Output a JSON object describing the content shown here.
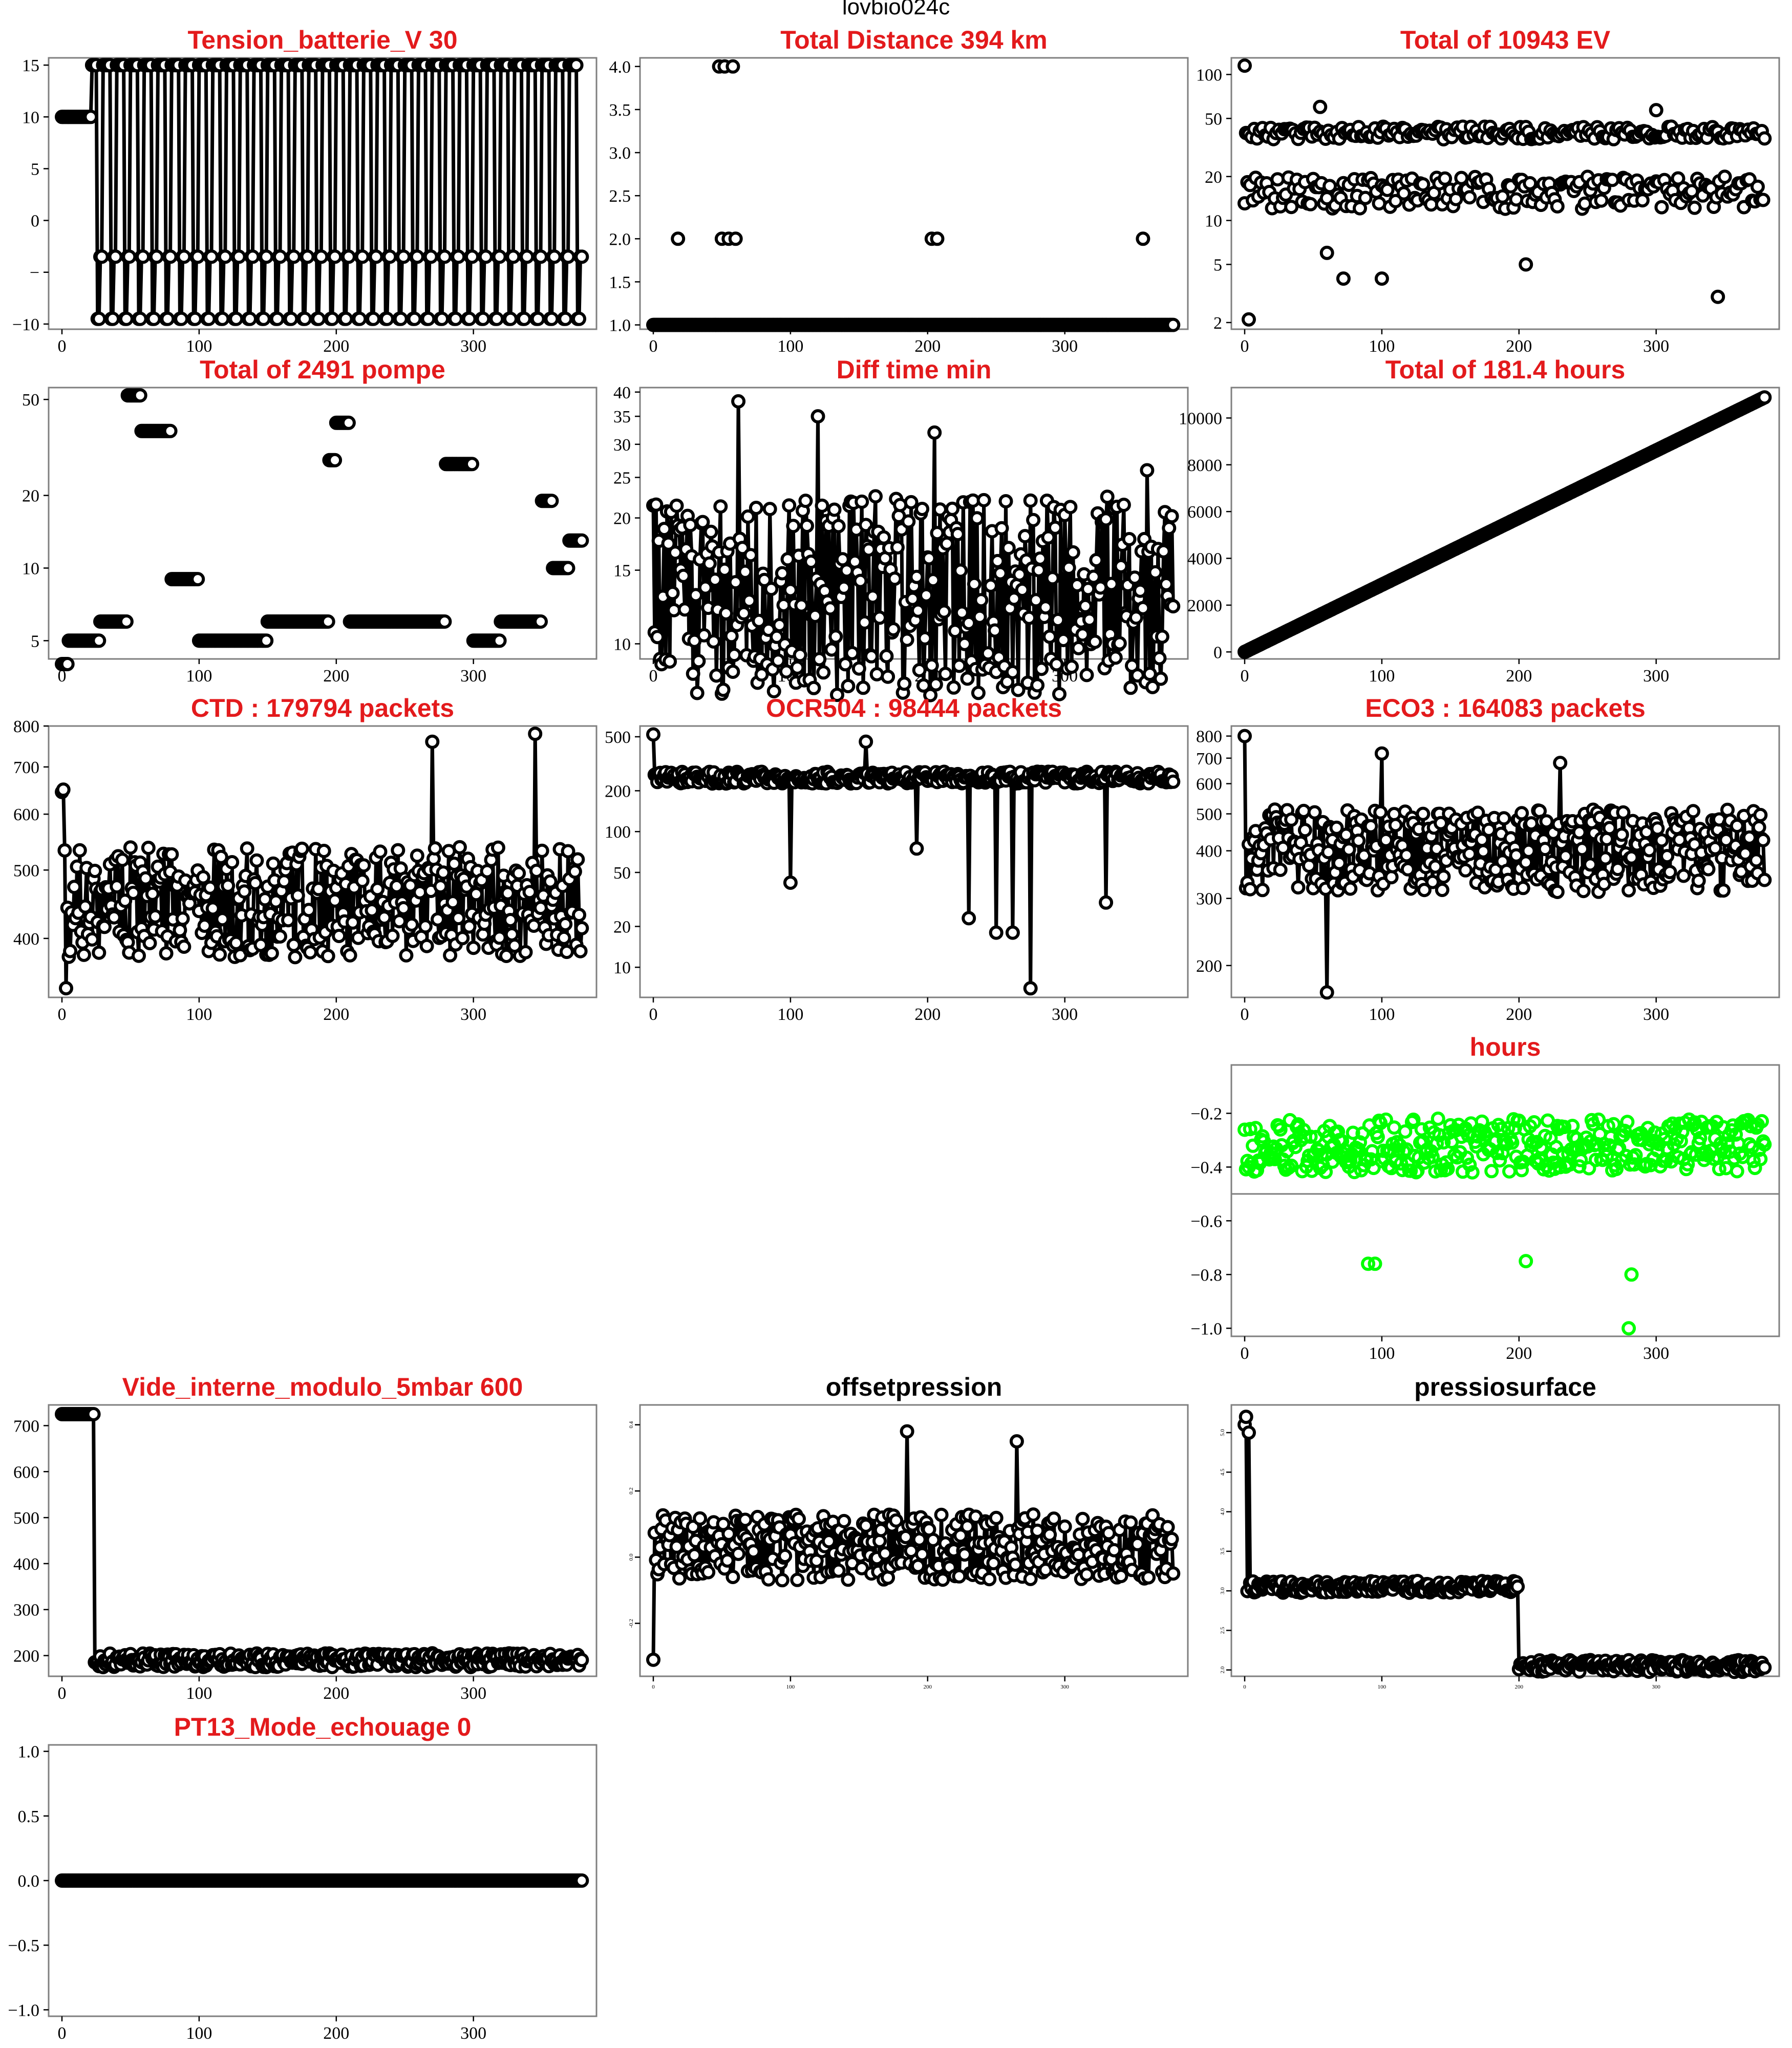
{
  "page_title": "lovbio024c",
  "chart_data": [
    {
      "id": "tension",
      "title": "Tension_batterie_V 30",
      "title_color": "#e31a1c",
      "type": "line",
      "marker": "circle",
      "x_range": [
        0,
        380
      ],
      "ylim": [
        -10.5,
        15.7
      ],
      "yscale": "linear",
      "xticks": [
        0,
        100,
        200,
        300
      ],
      "yticks": [
        {
          "v": -10,
          "l": "−10"
        },
        {
          "v": -5,
          "l": "−"
        },
        {
          "v": 0,
          "l": "0"
        },
        {
          "v": 5,
          "l": "5"
        },
        {
          "v": 10,
          "l": "10"
        },
        {
          "v": 15,
          "l": "15"
        }
      ],
      "pattern": "oscillate",
      "base_level": 10,
      "high": 15,
      "low": -9.5,
      "mid": -3.5,
      "period": 10,
      "start": 22
    },
    {
      "id": "distance",
      "title": "Total Distance  394  km",
      "title_color": "#e31a1c",
      "type": "scatter",
      "marker": "circle",
      "x_range": [
        0,
        380
      ],
      "ylim": [
        0.95,
        4.1
      ],
      "yscale": "linear",
      "xticks": [
        0,
        100,
        200,
        300
      ],
      "yticks": [
        {
          "v": 1,
          "l": "1.0"
        },
        {
          "v": 1.5,
          "l": "1.5"
        },
        {
          "v": 2,
          "l": "2.0"
        },
        {
          "v": 2.5,
          "l": "2.5"
        },
        {
          "v": 3,
          "l": "3.0"
        },
        {
          "v": 3.5,
          "l": "3.5"
        },
        {
          "v": 4,
          "l": "4.0"
        }
      ],
      "pattern": "baseline",
      "base": 1,
      "outliers": [
        [
          18,
          2
        ],
        [
          48,
          4
        ],
        [
          50,
          2
        ],
        [
          52,
          4
        ],
        [
          55,
          2
        ],
        [
          58,
          4
        ],
        [
          60,
          2
        ],
        [
          203,
          2
        ],
        [
          207,
          2
        ],
        [
          357,
          2
        ]
      ]
    },
    {
      "id": "ev",
      "title": "Total of  10943  EV",
      "title_color": "#e31a1c",
      "type": "scatter",
      "marker": "circle",
      "x_range": [
        0,
        380
      ],
      "ylim": [
        1.8,
        130
      ],
      "yscale": "log",
      "xticks": [
        0,
        100,
        200,
        300
      ],
      "yticks": [
        {
          "v": 2,
          "l": "2"
        },
        {
          "v": 5,
          "l": "5"
        },
        {
          "v": 10,
          "l": "10"
        },
        {
          "v": 20,
          "l": "20"
        },
        {
          "v": 50,
          "l": "50"
        },
        {
          "v": 100,
          "l": "100"
        }
      ],
      "pattern": "two_bands",
      "band_a": [
        36,
        44
      ],
      "band_b": [
        12,
        20
      ],
      "outliers": [
        [
          0,
          115
        ],
        [
          3,
          2.1
        ],
        [
          55,
          60
        ],
        [
          60,
          6
        ],
        [
          72,
          4
        ],
        [
          100,
          4
        ],
        [
          205,
          5
        ],
        [
          345,
          3
        ],
        [
          300,
          57
        ]
      ]
    },
    {
      "id": "pompe",
      "title": "Total of  2491  pompe",
      "title_color": "#e31a1c",
      "type": "scatter",
      "marker": "circle",
      "x_range": [
        0,
        380
      ],
      "ylim": [
        4.2,
        56
      ],
      "yscale": "log",
      "xticks": [
        0,
        100,
        200,
        300
      ],
      "yticks": [
        {
          "v": 5,
          "l": "5"
        },
        {
          "v": 10,
          "l": "10"
        },
        {
          "v": 20,
          "l": "20"
        },
        {
          "v": 50,
          "l": "50"
        }
      ],
      "pattern": "steps",
      "levels": [
        [
          0,
          4
        ],
        [
          5,
          5
        ],
        [
          28,
          6
        ],
        [
          48,
          52
        ],
        [
          55,
          52
        ],
        [
          58,
          37
        ],
        [
          80,
          9
        ],
        [
          100,
          5
        ],
        [
          150,
          6
        ],
        [
          195,
          28
        ],
        [
          200,
          40
        ],
        [
          210,
          6
        ],
        [
          280,
          27
        ],
        [
          300,
          5
        ],
        [
          320,
          6
        ],
        [
          350,
          19
        ],
        [
          358,
          10
        ],
        [
          370,
          13
        ]
      ]
    },
    {
      "id": "difftime",
      "title": "Diff time min",
      "title_color": "#e31a1c",
      "type": "line",
      "marker": "circle",
      "x_range": [
        0,
        380
      ],
      "ylim": [
        9.2,
        41
      ],
      "yscale": "log",
      "xticks": [
        0,
        100,
        200,
        300
      ],
      "yticks": [
        {
          "v": 10,
          "l": "10"
        },
        {
          "v": 15,
          "l": "15"
        },
        {
          "v": 20,
          "l": "20"
        },
        {
          "v": 25,
          "l": "25"
        },
        {
          "v": 30,
          "l": "30"
        },
        {
          "v": 35,
          "l": "35"
        },
        {
          "v": 40,
          "l": "40"
        }
      ],
      "pattern": "noisy",
      "center": 13,
      "spread": 0.55,
      "spikes": [
        [
          5,
          9.2
        ],
        [
          62,
          38
        ],
        [
          120,
          35
        ],
        [
          205,
          32
        ],
        [
          360,
          26
        ]
      ]
    },
    {
      "id": "hours_total",
      "title": "Total of  181.4  hours",
      "title_color": "#e31a1c",
      "type": "scatter",
      "marker": "circle",
      "x_range": [
        0,
        380
      ],
      "ylim": [
        -300,
        11300
      ],
      "yscale": "linear",
      "xticks": [
        0,
        100,
        200,
        300
      ],
      "yticks": [
        {
          "v": 0,
          "l": "0"
        },
        {
          "v": 2000,
          "l": "2000"
        },
        {
          "v": 4000,
          "l": "4000"
        },
        {
          "v": 6000,
          "l": "6000"
        },
        {
          "v": 8000,
          "l": "8000"
        },
        {
          "v": 10000,
          "l": "10000"
        }
      ],
      "pattern": "ramp",
      "from": 0,
      "to": 10880
    },
    {
      "id": "ctd",
      "title": "CTD  : 179794  packets",
      "title_color": "#e31a1c",
      "type": "line",
      "marker": "circle",
      "x_range": [
        0,
        380
      ],
      "ylim": [
        330,
        800
      ],
      "yscale": "log",
      "xticks": [
        0,
        100,
        200,
        300
      ],
      "yticks": [
        {
          "v": 400,
          "l": "400"
        },
        {
          "v": 500,
          "l": "500"
        },
        {
          "v": 600,
          "l": "600"
        },
        {
          "v": 700,
          "l": "700"
        },
        {
          "v": 800,
          "l": "800"
        }
      ],
      "pattern": "noisy",
      "center": 450,
      "spread": 0.18,
      "spikes": [
        [
          0,
          645
        ],
        [
          1,
          650
        ],
        [
          3,
          340
        ],
        [
          270,
          760
        ],
        [
          345,
          780
        ]
      ]
    },
    {
      "id": "ocr504",
      "title": "OCR504  : 98444  packets",
      "title_color": "#e31a1c",
      "type": "line",
      "marker": "circle",
      "x_range": [
        0,
        380
      ],
      "ylim": [
        6,
        600
      ],
      "yscale": "log",
      "xticks": [
        0,
        100,
        200,
        300
      ],
      "yticks": [
        {
          "v": 10,
          "l": "10"
        },
        {
          "v": 20,
          "l": "20"
        },
        {
          "v": 50,
          "l": "50"
        },
        {
          "v": 100,
          "l": "100"
        },
        {
          "v": 200,
          "l": "200"
        },
        {
          "v": 500,
          "l": "500"
        }
      ],
      "pattern": "noisy",
      "center": 250,
      "spread": 0.1,
      "spikes": [
        [
          0,
          520
        ],
        [
          100,
          42
        ],
        [
          155,
          460
        ],
        [
          192,
          75
        ],
        [
          230,
          23
        ],
        [
          250,
          18
        ],
        [
          262,
          18
        ],
        [
          275,
          7
        ],
        [
          330,
          30
        ]
      ]
    },
    {
      "id": "eco3",
      "title": "ECO3  : 164083  packets",
      "title_color": "#e31a1c",
      "type": "line",
      "marker": "circle",
      "x_range": [
        0,
        380
      ],
      "ylim": [
        165,
        850
      ],
      "yscale": "log",
      "xticks": [
        0,
        100,
        200,
        300
      ],
      "yticks": [
        {
          "v": 200,
          "l": "200"
        },
        {
          "v": 300,
          "l": "300"
        },
        {
          "v": 400,
          "l": "400"
        },
        {
          "v": 500,
          "l": "500"
        },
        {
          "v": 600,
          "l": "600"
        },
        {
          "v": 700,
          "l": "700"
        },
        {
          "v": 800,
          "l": "800"
        }
      ],
      "pattern": "noisy",
      "center": 400,
      "spread": 0.25,
      "spikes": [
        [
          0,
          800
        ],
        [
          60,
          170
        ],
        [
          100,
          720
        ],
        [
          230,
          680
        ]
      ]
    },
    {
      "id": "hours",
      "title": "hours",
      "title_color": "#e31a1c",
      "type": "scatter",
      "marker": "circle_green",
      "x_range": [
        0,
        380
      ],
      "ylim": [
        -1.03,
        -0.02
      ],
      "yscale": "linear",
      "xticks": [
        0,
        100,
        200,
        300
      ],
      "yticks": [
        {
          "v": -1,
          "l": "−1.0"
        },
        {
          "v": -0.8,
          "l": "−0.8"
        },
        {
          "v": -0.6,
          "l": "−0.6"
        },
        {
          "v": -0.4,
          "l": "−0.4"
        },
        {
          "v": -0.2,
          "l": "−0.2"
        }
      ],
      "hline": -0.5,
      "pattern": "noisy",
      "center": -0.32,
      "spread": 0.1,
      "spikes": [
        [
          90,
          -0.76
        ],
        [
          95,
          -0.76
        ],
        [
          205,
          -0.75
        ],
        [
          280,
          -1.0
        ],
        [
          282,
          -0.8
        ]
      ]
    },
    {
      "id": "vide",
      "title": "Vide_interne_modulo_5mbar 600",
      "title_color": "#e31a1c",
      "type": "line",
      "marker": "circle",
      "x_range": [
        0,
        380
      ],
      "ylim": [
        155,
        745
      ],
      "yscale": "linear",
      "xticks": [
        0,
        100,
        200,
        300
      ],
      "yticks": [
        {
          "v": 200,
          "l": "200"
        },
        {
          "v": 300,
          "l": "300"
        },
        {
          "v": 400,
          "l": "400"
        },
        {
          "v": 500,
          "l": "500"
        },
        {
          "v": 600,
          "l": "600"
        },
        {
          "v": 700,
          "l": "700"
        }
      ],
      "pattern": "drop",
      "high": 725,
      "low": 190,
      "drop_at": 24
    },
    {
      "id": "offsetpression",
      "title": "offsetpression",
      "title_color": "#000000",
      "type": "line",
      "marker": "circle",
      "x_range": [
        0,
        380
      ],
      "ylim": [
        -0.36,
        0.46
      ],
      "yscale": "linear",
      "xticks": [
        0,
        100,
        200,
        300
      ],
      "yticks": [
        {
          "v": -0.2,
          "l": "-0.2"
        },
        {
          "v": 0,
          "l": "0.0"
        },
        {
          "v": 0.2,
          "l": "0.2"
        },
        {
          "v": 0.4,
          "l": "0.4"
        }
      ],
      "small_ticks": true,
      "pattern": "noisy_lin",
      "center": 0.03,
      "spread": 0.1,
      "spikes": [
        [
          0,
          -0.31
        ],
        [
          185,
          0.38
        ],
        [
          265,
          0.35
        ]
      ]
    },
    {
      "id": "pressiosurface",
      "title": "pressiosurface",
      "title_color": "#000000",
      "type": "line",
      "marker": "circle",
      "x_range": [
        0,
        380
      ],
      "ylim": [
        1.92,
        5.35
      ],
      "yscale": "linear",
      "xticks": [
        0,
        100,
        200,
        300
      ],
      "yticks": [
        {
          "v": 2,
          "l": "2.0"
        },
        {
          "v": 2.5,
          "l": "2.5"
        },
        {
          "v": 3,
          "l": "3.0"
        },
        {
          "v": 3.5,
          "l": "3.5"
        },
        {
          "v": 4,
          "l": "4.0"
        },
        {
          "v": 4.5,
          "l": "4.5"
        },
        {
          "v": 5,
          "l": "5.0"
        }
      ],
      "small_ticks": true,
      "pattern": "two_level",
      "first": [
        [
          0,
          5.1
        ],
        [
          1,
          5.2
        ],
        [
          3,
          5.0
        ]
      ],
      "level_a": 3.05,
      "level_b": 2.05,
      "step_at": 200
    },
    {
      "id": "pt13",
      "title": "PT13_Mode_echouage  0",
      "title_color": "#e31a1c",
      "type": "line",
      "marker": "circle",
      "x_range": [
        0,
        380
      ],
      "ylim": [
        -1.05,
        1.05
      ],
      "yscale": "linear",
      "xticks": [
        0,
        100,
        200,
        300
      ],
      "yticks": [
        {
          "v": -1,
          "l": "−1.0"
        },
        {
          "v": -0.5,
          "l": "−0.5"
        },
        {
          "v": 0,
          "l": "0.0"
        },
        {
          "v": 0.5,
          "l": "0.5"
        },
        {
          "v": 1,
          "l": "1.0"
        }
      ],
      "pattern": "flat",
      "value": 0
    }
  ]
}
